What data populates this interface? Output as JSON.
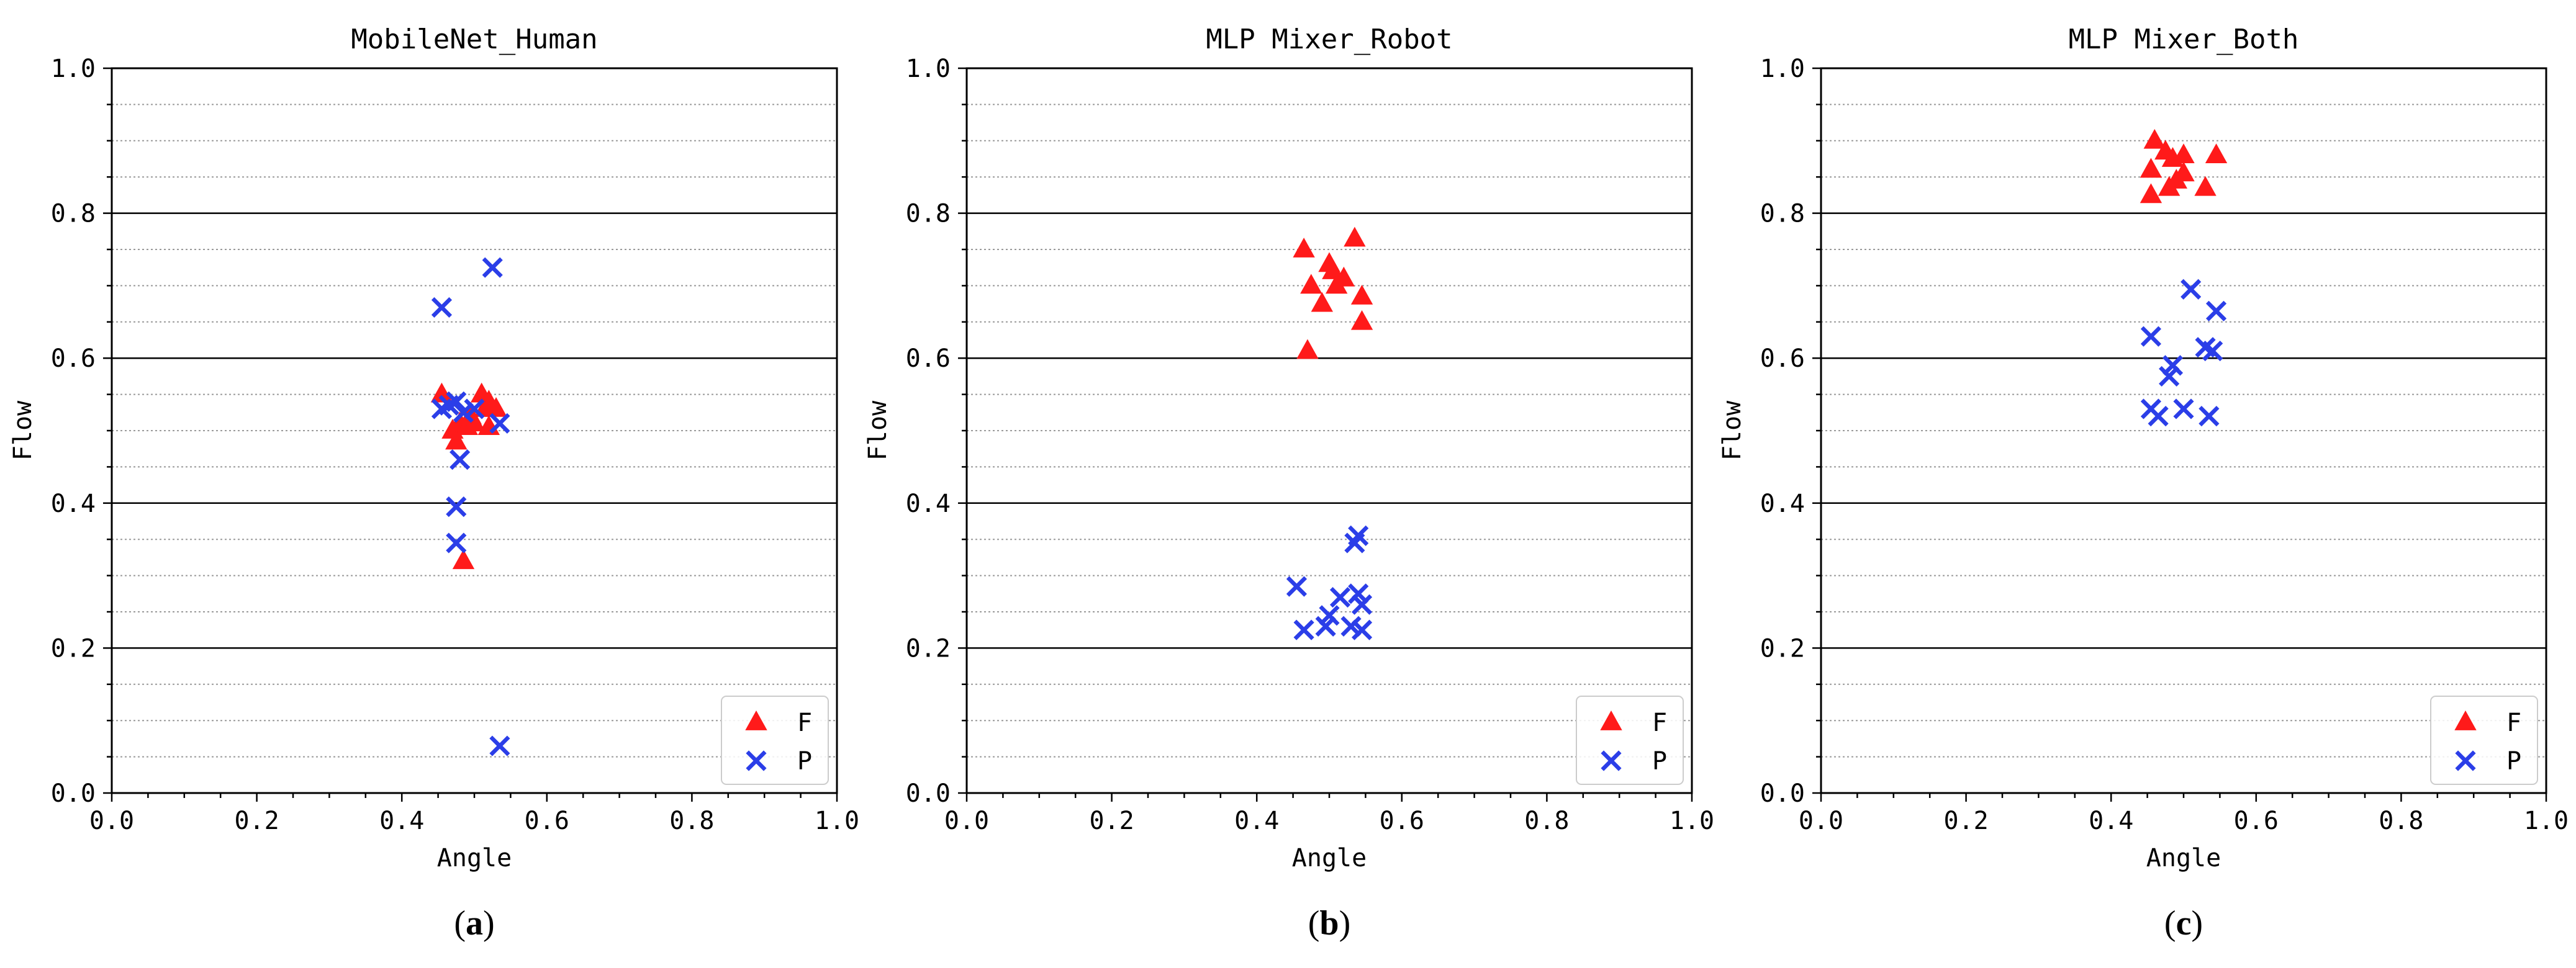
{
  "chart_data": [
    {
      "type": "scatter",
      "title": "MobileNet_Human",
      "xlabel": "Angle",
      "ylabel": "Flow",
      "xlim": [
        0,
        1
      ],
      "ylim": [
        0,
        1
      ],
      "xticks": [
        "0.0",
        "0.2",
        "0.4",
        "0.6",
        "0.8",
        "1.0"
      ],
      "yticks": [
        "0.0",
        "0.2",
        "0.4",
        "0.6",
        "0.8",
        "1.0"
      ],
      "grid": "major solid, minor dotted (y)",
      "legend_position": "bottom-right",
      "caption": "(a)",
      "series": [
        {
          "name": "F",
          "marker": "triangle",
          "color": "#ff1a1a",
          "points": [
            [
              0.455,
              0.55
            ],
            [
              0.47,
              0.5
            ],
            [
              0.475,
              0.485
            ],
            [
              0.48,
              0.51
            ],
            [
              0.49,
              0.505
            ],
            [
              0.495,
              0.52
            ],
            [
              0.5,
              0.51
            ],
            [
              0.51,
              0.55
            ],
            [
              0.515,
              0.53
            ],
            [
              0.52,
              0.54
            ],
            [
              0.52,
              0.505
            ],
            [
              0.485,
              0.32
            ],
            [
              0.53,
              0.53
            ]
          ]
        },
        {
          "name": "P",
          "marker": "x",
          "color": "#2b3ee8",
          "points": [
            [
              0.455,
              0.67
            ],
            [
              0.525,
              0.725
            ],
            [
              0.455,
              0.53
            ],
            [
              0.465,
              0.535
            ],
            [
              0.475,
              0.54
            ],
            [
              0.485,
              0.525
            ],
            [
              0.5,
              0.53
            ],
            [
              0.535,
              0.51
            ],
            [
              0.48,
              0.46
            ],
            [
              0.475,
              0.395
            ],
            [
              0.475,
              0.345
            ],
            [
              0.535,
              0.065
            ]
          ]
        }
      ]
    },
    {
      "type": "scatter",
      "title": "MLP Mixer_Robot",
      "xlabel": "Angle",
      "ylabel": "Flow",
      "xlim": [
        0,
        1
      ],
      "ylim": [
        0,
        1
      ],
      "xticks": [
        "0.0",
        "0.2",
        "0.4",
        "0.6",
        "0.8",
        "1.0"
      ],
      "yticks": [
        "0.0",
        "0.2",
        "0.4",
        "0.6",
        "0.8",
        "1.0"
      ],
      "grid": "major solid, minor dotted (y)",
      "legend_position": "bottom-right",
      "caption": "(b)",
      "series": [
        {
          "name": "F",
          "marker": "triangle",
          "color": "#ff1a1a",
          "points": [
            [
              0.465,
              0.75
            ],
            [
              0.535,
              0.765
            ],
            [
              0.475,
              0.7
            ],
            [
              0.49,
              0.675
            ],
            [
              0.5,
              0.73
            ],
            [
              0.505,
              0.72
            ],
            [
              0.51,
              0.7
            ],
            [
              0.52,
              0.71
            ],
            [
              0.545,
              0.685
            ],
            [
              0.545,
              0.65
            ],
            [
              0.47,
              0.61
            ]
          ]
        },
        {
          "name": "P",
          "marker": "x",
          "color": "#2b3ee8",
          "points": [
            [
              0.54,
              0.355
            ],
            [
              0.535,
              0.345
            ],
            [
              0.455,
              0.285
            ],
            [
              0.515,
              0.27
            ],
            [
              0.54,
              0.275
            ],
            [
              0.545,
              0.26
            ],
            [
              0.5,
              0.245
            ],
            [
              0.495,
              0.23
            ],
            [
              0.53,
              0.23
            ],
            [
              0.465,
              0.225
            ],
            [
              0.545,
              0.225
            ]
          ]
        }
      ]
    },
    {
      "type": "scatter",
      "title": "MLP Mixer_Both",
      "xlabel": "Angle",
      "ylabel": "Flow",
      "xlim": [
        0,
        1
      ],
      "ylim": [
        0,
        1
      ],
      "xticks": [
        "0.0",
        "0.2",
        "0.4",
        "0.6",
        "0.8",
        "1.0"
      ],
      "yticks": [
        "0.0",
        "0.2",
        "0.4",
        "0.6",
        "0.8",
        "1.0"
      ],
      "grid": "major solid, minor dotted (y)",
      "legend_position": "bottom-right",
      "caption": "(c)",
      "series": [
        {
          "name": "F",
          "marker": "triangle",
          "color": "#ff1a1a",
          "points": [
            [
              0.46,
              0.9
            ],
            [
              0.475,
              0.885
            ],
            [
              0.485,
              0.875
            ],
            [
              0.5,
              0.88
            ],
            [
              0.545,
              0.88
            ],
            [
              0.455,
              0.86
            ],
            [
              0.5,
              0.855
            ],
            [
              0.49,
              0.845
            ],
            [
              0.48,
              0.835
            ],
            [
              0.53,
              0.835
            ],
            [
              0.455,
              0.825
            ]
          ]
        },
        {
          "name": "P",
          "marker": "x",
          "color": "#2b3ee8",
          "points": [
            [
              0.51,
              0.695
            ],
            [
              0.545,
              0.665
            ],
            [
              0.455,
              0.63
            ],
            [
              0.53,
              0.615
            ],
            [
              0.54,
              0.61
            ],
            [
              0.485,
              0.59
            ],
            [
              0.48,
              0.575
            ],
            [
              0.455,
              0.53
            ],
            [
              0.465,
              0.52
            ],
            [
              0.5,
              0.53
            ],
            [
              0.535,
              0.52
            ]
          ]
        }
      ]
    }
  ]
}
